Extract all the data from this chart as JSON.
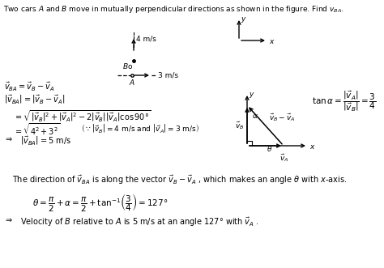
{
  "bg_color": "#ffffff",
  "figsize": [
    4.74,
    3.31
  ],
  "dpi": 100,
  "title": "Two cars $A$ and $B$ move in mutually perpendicular directions as shown in the figure. Find $v_{BA}$."
}
